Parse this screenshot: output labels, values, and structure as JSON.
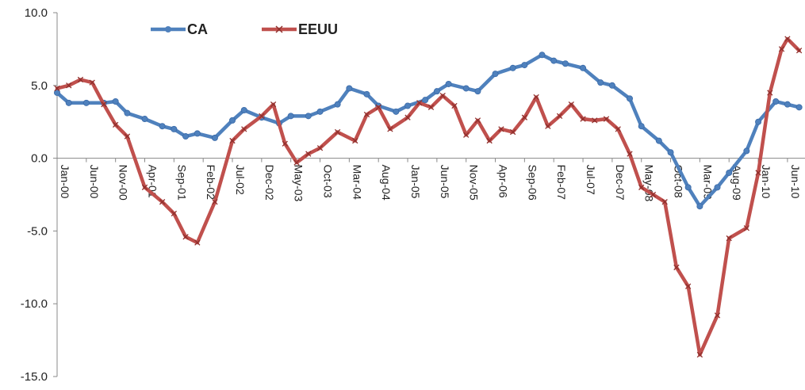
{
  "chart_data": {
    "type": "line",
    "title": "",
    "xlabel": "",
    "ylabel": "",
    "ylim": [
      -15,
      10
    ],
    "y_ticks": [
      10,
      5,
      0,
      -5,
      -10,
      -15
    ],
    "y_tick_labels": [
      "10.0",
      "5.0",
      "0.0",
      "-5.0",
      "-10.0",
      "-15.0"
    ],
    "x_tick_labels": [
      "Jan-00",
      "Jun-00",
      "Nov-00",
      "Apr-01",
      "Sep-01",
      "Feb-02",
      "Jul-02",
      "Dec-02",
      "May-03",
      "Oct-03",
      "Mar-04",
      "Aug-04",
      "Jan-05",
      "Jun-05",
      "Nov-05",
      "Apr-06",
      "Sep-06",
      "Feb-07",
      "Jul-07",
      "Dec-07",
      "May-08",
      "Oct-08",
      "Mar-09",
      "Aug-09",
      "Jan-10",
      "Jun-10"
    ],
    "grid": false,
    "legend": "top-left",
    "series": [
      {
        "name": "CA",
        "color": "#4F81BD",
        "marker": "circle",
        "values": [
          {
            "x": "Jan-00",
            "y": 4.5
          },
          {
            "x": "Mar-00",
            "y": 3.8
          },
          {
            "x": "Jun-00",
            "y": 3.8
          },
          {
            "x": "Sep-00",
            "y": 3.8
          },
          {
            "x": "Nov-00",
            "y": 3.9
          },
          {
            "x": "Jan-01",
            "y": 3.1
          },
          {
            "x": "Apr-01",
            "y": 2.7
          },
          {
            "x": "Jul-01",
            "y": 2.2
          },
          {
            "x": "Sep-01",
            "y": 2.0
          },
          {
            "x": "Nov-01",
            "y": 1.5
          },
          {
            "x": "Jan-02",
            "y": 1.7
          },
          {
            "x": "Apr-02",
            "y": 1.4
          },
          {
            "x": "Jul-02",
            "y": 2.6
          },
          {
            "x": "Sep-02",
            "y": 3.3
          },
          {
            "x": "Dec-02",
            "y": 2.8
          },
          {
            "x": "Mar-03",
            "y": 2.4
          },
          {
            "x": "May-03",
            "y": 2.9
          },
          {
            "x": "Aug-03",
            "y": 2.9
          },
          {
            "x": "Oct-03",
            "y": 3.2
          },
          {
            "x": "Jan-04",
            "y": 3.7
          },
          {
            "x": "Mar-04",
            "y": 4.8
          },
          {
            "x": "Jun-04",
            "y": 4.4
          },
          {
            "x": "Aug-04",
            "y": 3.6
          },
          {
            "x": "Nov-04",
            "y": 3.2
          },
          {
            "x": "Jan-05",
            "y": 3.6
          },
          {
            "x": "Apr-05",
            "y": 4.0
          },
          {
            "x": "Jun-05",
            "y": 4.6
          },
          {
            "x": "Aug-05",
            "y": 5.1
          },
          {
            "x": "Nov-05",
            "y": 4.8
          },
          {
            "x": "Jan-06",
            "y": 4.6
          },
          {
            "x": "Apr-06",
            "y": 5.8
          },
          {
            "x": "Jul-06",
            "y": 6.2
          },
          {
            "x": "Sep-06",
            "y": 6.4
          },
          {
            "x": "Dec-06",
            "y": 7.1
          },
          {
            "x": "Feb-07",
            "y": 6.7
          },
          {
            "x": "Apr-07",
            "y": 6.5
          },
          {
            "x": "Jul-07",
            "y": 6.2
          },
          {
            "x": "Oct-07",
            "y": 5.2
          },
          {
            "x": "Dec-07",
            "y": 5.0
          },
          {
            "x": "Mar-08",
            "y": 4.1
          },
          {
            "x": "May-08",
            "y": 2.2
          },
          {
            "x": "Aug-08",
            "y": 1.2
          },
          {
            "x": "Oct-08",
            "y": 0.4
          },
          {
            "x": "Jan-09",
            "y": -2.0
          },
          {
            "x": "Mar-09",
            "y": -3.3
          },
          {
            "x": "Jun-09",
            "y": -2.0
          },
          {
            "x": "Aug-09",
            "y": -1.0
          },
          {
            "x": "Nov-09",
            "y": 0.5
          },
          {
            "x": "Jan-10",
            "y": 2.5
          },
          {
            "x": "Apr-10",
            "y": 3.9
          },
          {
            "x": "Jun-10",
            "y": 3.7
          },
          {
            "x": "Aug-10",
            "y": 3.5
          }
        ]
      },
      {
        "name": "EEUU",
        "color": "#C0504D",
        "marker": "x",
        "values": [
          {
            "x": "Jan-00",
            "y": 4.8
          },
          {
            "x": "Mar-00",
            "y": 5.0
          },
          {
            "x": "May-00",
            "y": 5.4
          },
          {
            "x": "Jul-00",
            "y": 5.2
          },
          {
            "x": "Sep-00",
            "y": 3.7
          },
          {
            "x": "Nov-00",
            "y": 2.3
          },
          {
            "x": "Jan-01",
            "y": 1.5
          },
          {
            "x": "Apr-01",
            "y": -2.0
          },
          {
            "x": "Jul-01",
            "y": -3.0
          },
          {
            "x": "Sep-01",
            "y": -3.8
          },
          {
            "x": "Nov-01",
            "y": -5.4
          },
          {
            "x": "Jan-02",
            "y": -5.8
          },
          {
            "x": "Apr-02",
            "y": -3.0
          },
          {
            "x": "Jul-02",
            "y": 1.2
          },
          {
            "x": "Sep-02",
            "y": 2.0
          },
          {
            "x": "Dec-02",
            "y": 2.9
          },
          {
            "x": "Feb-03",
            "y": 3.7
          },
          {
            "x": "Apr-03",
            "y": 1.0
          },
          {
            "x": "Jun-03",
            "y": -0.3
          },
          {
            "x": "Aug-03",
            "y": 0.3
          },
          {
            "x": "Oct-03",
            "y": 0.7
          },
          {
            "x": "Jan-04",
            "y": 1.8
          },
          {
            "x": "Apr-04",
            "y": 1.2
          },
          {
            "x": "Jun-04",
            "y": 3.0
          },
          {
            "x": "Aug-04",
            "y": 3.5
          },
          {
            "x": "Oct-04",
            "y": 2.0
          },
          {
            "x": "Jan-05",
            "y": 2.8
          },
          {
            "x": "Mar-05",
            "y": 3.8
          },
          {
            "x": "May-05",
            "y": 3.5
          },
          {
            "x": "Jul-05",
            "y": 4.3
          },
          {
            "x": "Sep-05",
            "y": 3.6
          },
          {
            "x": "Nov-05",
            "y": 1.6
          },
          {
            "x": "Jan-06",
            "y": 2.6
          },
          {
            "x": "Mar-06",
            "y": 1.2
          },
          {
            "x": "May-06",
            "y": 2.0
          },
          {
            "x": "Jul-06",
            "y": 1.8
          },
          {
            "x": "Sep-06",
            "y": 2.8
          },
          {
            "x": "Nov-06",
            "y": 4.2
          },
          {
            "x": "Jan-07",
            "y": 2.2
          },
          {
            "x": "Mar-07",
            "y": 2.9
          },
          {
            "x": "May-07",
            "y": 3.7
          },
          {
            "x": "Jul-07",
            "y": 2.7
          },
          {
            "x": "Sep-07",
            "y": 2.6
          },
          {
            "x": "Nov-07",
            "y": 2.7
          },
          {
            "x": "Jan-08",
            "y": 2.0
          },
          {
            "x": "Mar-08",
            "y": 0.3
          },
          {
            "x": "May-08",
            "y": -2.0
          },
          {
            "x": "Jul-08",
            "y": -2.5
          },
          {
            "x": "Sep-08",
            "y": -3.0
          },
          {
            "x": "Nov-08",
            "y": -7.5
          },
          {
            "x": "Jan-09",
            "y": -8.8
          },
          {
            "x": "Mar-09",
            "y": -13.5
          },
          {
            "x": "Jun-09",
            "y": -10.8
          },
          {
            "x": "Aug-09",
            "y": -5.5
          },
          {
            "x": "Nov-09",
            "y": -4.8
          },
          {
            "x": "Jan-10",
            "y": -1.0
          },
          {
            "x": "Mar-10",
            "y": 4.5
          },
          {
            "x": "May-10",
            "y": 7.5
          },
          {
            "x": "Jun-10",
            "y": 8.2
          },
          {
            "x": "Aug-10",
            "y": 7.4
          }
        ]
      }
    ]
  }
}
